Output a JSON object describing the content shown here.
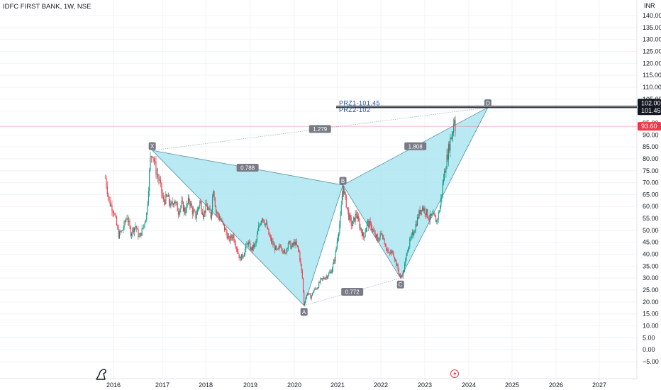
{
  "header": {
    "symbol_title": "IDFC FIRST BANK, 1W, NSE"
  },
  "currency_label": "INR",
  "colors": {
    "up": "#089981",
    "down": "#f23645",
    "pattern_fill": "#a5e4ef",
    "pattern_line": "#8aa0a8",
    "ratio_badge": "#787b86",
    "prz_line": "#131722",
    "prz_text": "#1e4fa0",
    "last_price": "#f23645"
  },
  "chart_data": {
    "type": "candlestick",
    "title": "IDFC FIRST BANK, 1W, NSE",
    "x_axis": {
      "ticks": [
        "2016",
        "2017",
        "2018",
        "2019",
        "2020",
        "2021",
        "2022",
        "2023",
        "2024",
        "2025",
        "2026",
        "2027"
      ],
      "range": [
        "2015-10-01",
        "2027-06-01"
      ]
    },
    "y_axis": {
      "currency": "INR",
      "range": [
        -7,
        143
      ],
      "ticks": [
        "140.00",
        "135.00",
        "130.00",
        "125.00",
        "120.00",
        "115.00",
        "110.00",
        "105.00",
        "100.00",
        "95.00",
        "90.00",
        "85.00",
        "80.00",
        "75.00",
        "70.00",
        "65.00",
        "60.00",
        "55.00",
        "50.00",
        "45.00",
        "40.00",
        "35.00",
        "30.00",
        "25.00",
        "20.00",
        "15.00",
        "10.00",
        "5.00",
        "0.00",
        "−5.00"
      ],
      "price_labels": [
        {
          "text": "102.00",
          "value": 102.0,
          "style": "dark"
        },
        {
          "text": "101.45",
          "value": 101.45,
          "style": "dark"
        },
        {
          "text": "93.60",
          "value": 93.6,
          "style": "red"
        }
      ]
    },
    "price_path": [
      [
        "2015-11-02",
        72
      ],
      [
        "2015-11-30",
        62
      ],
      [
        "2016-01-04",
        58
      ],
      [
        "2016-02-08",
        48
      ],
      [
        "2016-03-07",
        50
      ],
      [
        "2016-04-11",
        56
      ],
      [
        "2016-05-09",
        49
      ],
      [
        "2016-06-13",
        52
      ],
      [
        "2016-07-11",
        47
      ],
      [
        "2016-08-08",
        51
      ],
      [
        "2016-09-05",
        57
      ],
      [
        "2016-10-03",
        80
      ],
      [
        "2016-10-17",
        83
      ],
      [
        "2016-11-14",
        75
      ],
      [
        "2016-12-12",
        70
      ],
      [
        "2017-01-09",
        62
      ],
      [
        "2017-02-13",
        64
      ],
      [
        "2017-03-13",
        60
      ],
      [
        "2017-04-10",
        63
      ],
      [
        "2017-05-15",
        58
      ],
      [
        "2017-06-12",
        61
      ],
      [
        "2017-07-10",
        58
      ],
      [
        "2017-08-14",
        63
      ],
      [
        "2017-09-11",
        58
      ],
      [
        "2017-10-09",
        56
      ],
      [
        "2017-11-13",
        62
      ],
      [
        "2017-12-11",
        57
      ],
      [
        "2018-01-08",
        60
      ],
      [
        "2018-02-12",
        56
      ],
      [
        "2018-03-05",
        68
      ],
      [
        "2018-03-26",
        58
      ],
      [
        "2018-05-07",
        54
      ],
      [
        "2018-06-11",
        50
      ],
      [
        "2018-07-09",
        46
      ],
      [
        "2018-08-13",
        48
      ],
      [
        "2018-09-10",
        43
      ],
      [
        "2018-10-08",
        38
      ],
      [
        "2018-11-05",
        40
      ],
      [
        "2018-12-10",
        45
      ],
      [
        "2019-01-07",
        42
      ],
      [
        "2019-02-11",
        44
      ],
      [
        "2019-03-11",
        51
      ],
      [
        "2019-04-08",
        56
      ],
      [
        "2019-05-13",
        52
      ],
      [
        "2019-06-10",
        47
      ],
      [
        "2019-07-08",
        44
      ],
      [
        "2019-08-12",
        41
      ],
      [
        "2019-09-09",
        44
      ],
      [
        "2019-10-14",
        40
      ],
      [
        "2019-11-11",
        45
      ],
      [
        "2019-12-09",
        43
      ],
      [
        "2020-01-06",
        45
      ],
      [
        "2020-02-10",
        41
      ],
      [
        "2020-03-09",
        30
      ],
      [
        "2020-03-23",
        19
      ],
      [
        "2020-04-20",
        24
      ],
      [
        "2020-05-18",
        22
      ],
      [
        "2020-06-15",
        25
      ],
      [
        "2020-07-13",
        26
      ],
      [
        "2020-08-10",
        29
      ],
      [
        "2020-09-07",
        30
      ],
      [
        "2020-10-05",
        31
      ],
      [
        "2020-11-09",
        33
      ],
      [
        "2020-12-07",
        38
      ],
      [
        "2021-01-04",
        48
      ],
      [
        "2021-01-25",
        55
      ],
      [
        "2021-02-15",
        69
      ],
      [
        "2021-03-08",
        63
      ],
      [
        "2021-04-05",
        56
      ],
      [
        "2021-05-03",
        52
      ],
      [
        "2021-06-07",
        57
      ],
      [
        "2021-07-05",
        52
      ],
      [
        "2021-08-09",
        47
      ],
      [
        "2021-09-06",
        53
      ],
      [
        "2021-10-11",
        52
      ],
      [
        "2021-11-08",
        48
      ],
      [
        "2021-12-06",
        46
      ],
      [
        "2022-01-10",
        49
      ],
      [
        "2022-02-07",
        44
      ],
      [
        "2022-03-07",
        40
      ],
      [
        "2022-04-11",
        41
      ],
      [
        "2022-05-09",
        36
      ],
      [
        "2022-06-13",
        30
      ],
      [
        "2022-07-11",
        33
      ],
      [
        "2022-08-08",
        42
      ],
      [
        "2022-09-05",
        46
      ],
      [
        "2022-10-10",
        51
      ],
      [
        "2022-11-07",
        56
      ],
      [
        "2022-12-05",
        60
      ],
      [
        "2023-01-09",
        58
      ],
      [
        "2023-02-06",
        55
      ],
      [
        "2023-03-06",
        56
      ],
      [
        "2023-04-10",
        54
      ],
      [
        "2023-05-08",
        60
      ],
      [
        "2023-06-05",
        72
      ],
      [
        "2023-07-03",
        80
      ],
      [
        "2023-07-31",
        88
      ],
      [
        "2023-08-21",
        92
      ],
      [
        "2023-09-04",
        98
      ],
      [
        "2023-09-11",
        93.6
      ]
    ],
    "harmonic_pattern": {
      "points": [
        {
          "label": "X",
          "date": "2016-10-17",
          "price": 83.5
        },
        {
          "label": "A",
          "date": "2020-03-23",
          "price": 18.5
        },
        {
          "label": "B",
          "date": "2021-02-15",
          "price": 69
        },
        {
          "label": "C",
          "date": "2022-06-13",
          "price": 30
        },
        {
          "label": "D",
          "date": "2024-06-10",
          "price": 101.5
        }
      ],
      "ratios": [
        {
          "text": "0.788",
          "between": [
            "X",
            "B"
          ]
        },
        {
          "text": "0.772",
          "between": [
            "A",
            "C"
          ]
        },
        {
          "text": "1.808",
          "between": [
            "B",
            "D"
          ]
        },
        {
          "text": "1.279",
          "between": [
            "X",
            "D"
          ]
        }
      ]
    },
    "prz": [
      {
        "text": "PRZ1-101.45",
        "value": 101.45
      },
      {
        "text": "PRZ2-102",
        "value": 102.0
      }
    ],
    "last_price": 93.6
  }
}
